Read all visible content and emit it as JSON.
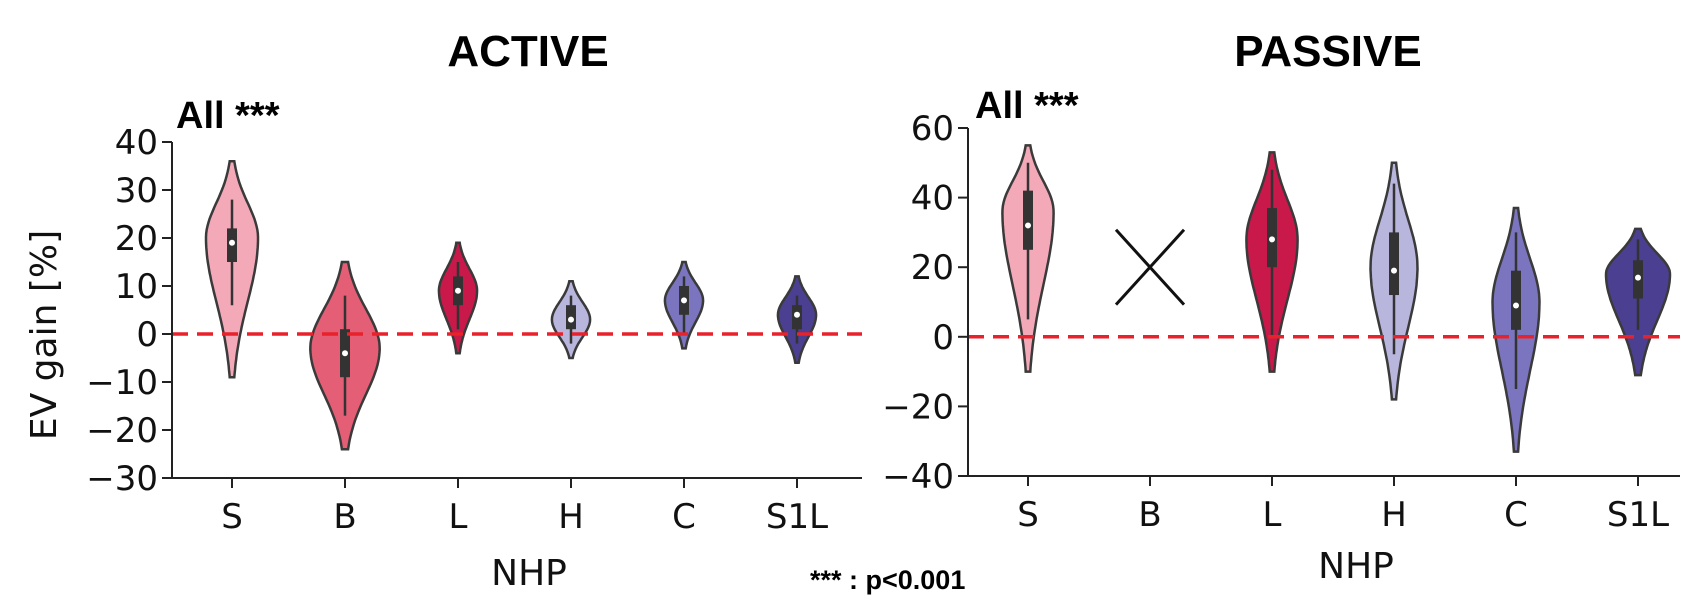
{
  "figure": {
    "footnote": "*** : p<0.001"
  },
  "chart_data": [
    {
      "type": "violin",
      "title": "ACTIVE",
      "annotation": "All ***",
      "xlabel": "NHP",
      "ylabel": "EV gain [%]",
      "ylim": [
        -30,
        40
      ],
      "yticks": [
        -30,
        -20,
        -10,
        0,
        10,
        20,
        30,
        40
      ],
      "ytick_labels": [
        "−30",
        "−20",
        "−10",
        "0",
        "10",
        "20",
        "30",
        "40"
      ],
      "reference_line": {
        "y": 0,
        "style": "dashed",
        "color": "#e8212b"
      },
      "categories": [
        "S",
        "B",
        "L",
        "H",
        "C",
        "S1L"
      ],
      "violins": [
        {
          "category": "S",
          "color": "#f4a9b8",
          "min": -9,
          "max": 36,
          "q1": 15,
          "median": 19,
          "q3": 22,
          "mode": 20,
          "whisker_low": 6,
          "whisker_high": 28,
          "spread": 0.75,
          "skew": 0.55
        },
        {
          "category": "B",
          "color": "#e45e76",
          "min": -24,
          "max": 15,
          "q1": -9,
          "median": -4,
          "q3": 1,
          "mode": -3,
          "whisker_low": -17,
          "whisker_high": 8,
          "spread": 1.0,
          "skew": 0.5
        },
        {
          "category": "L",
          "color": "#c8194a",
          "min": -4,
          "max": 19,
          "q1": 6,
          "median": 9,
          "q3": 12,
          "mode": 9,
          "whisker_low": 1,
          "whisker_high": 15,
          "spread": 0.55,
          "skew": 0.5
        },
        {
          "category": "H",
          "color": "#b9b6de",
          "min": -5,
          "max": 11,
          "q1": 1,
          "median": 3,
          "q3": 6,
          "mode": 3,
          "whisker_low": -2,
          "whisker_high": 8,
          "spread": 0.55,
          "skew": 0.5
        },
        {
          "category": "C",
          "color": "#7b75c0",
          "min": -3,
          "max": 15,
          "q1": 4,
          "median": 7,
          "q3": 10,
          "mode": 7,
          "whisker_low": 0,
          "whisker_high": 12,
          "spread": 0.55,
          "skew": 0.5
        },
        {
          "category": "S1L",
          "color": "#4b3f91",
          "min": -6,
          "max": 12,
          "q1": 1,
          "median": 4,
          "q3": 6,
          "mode": 4,
          "whisker_low": -2,
          "whisker_high": 8,
          "spread": 0.55,
          "skew": 0.5
        }
      ]
    },
    {
      "type": "violin",
      "title": "PASSIVE",
      "annotation": "All ***",
      "xlabel": "NHP",
      "ylabel": "",
      "ylim": [
        -40,
        60
      ],
      "yticks": [
        -40,
        -20,
        0,
        20,
        40,
        60
      ],
      "ytick_labels": [
        "−40",
        "−20",
        "0",
        "20",
        "40",
        "60"
      ],
      "reference_line": {
        "y": 0,
        "style": "dashed",
        "color": "#e8212b"
      },
      "categories": [
        "S",
        "B",
        "L",
        "H",
        "C",
        "S1L"
      ],
      "missing_categories": [
        "B"
      ],
      "violins": [
        {
          "category": "S",
          "color": "#f4a9b8",
          "min": -10,
          "max": 55,
          "q1": 25,
          "median": 32,
          "q3": 42,
          "mode": 36,
          "whisker_low": 5,
          "whisker_high": 50,
          "spread": 0.6,
          "skew": 0.55
        },
        {
          "category": "L",
          "color": "#c8194a",
          "min": -10,
          "max": 53,
          "q1": 20,
          "median": 28,
          "q3": 37,
          "mode": 28,
          "whisker_low": 0,
          "whisker_high": 48,
          "spread": 0.6,
          "skew": 0.5
        },
        {
          "category": "H",
          "color": "#b9b6de",
          "min": -18,
          "max": 50,
          "q1": 12,
          "median": 19,
          "q3": 30,
          "mode": 20,
          "whisker_low": -5,
          "whisker_high": 44,
          "spread": 0.55,
          "skew": 0.5
        },
        {
          "category": "C",
          "color": "#7b75c0",
          "min": -33,
          "max": 37,
          "q1": 2,
          "median": 9,
          "q3": 19,
          "mode": 10,
          "whisker_low": -15,
          "whisker_high": 30,
          "spread": 0.55,
          "skew": 0.5
        },
        {
          "category": "S1L",
          "color": "#4b3f91",
          "min": -11,
          "max": 31,
          "q1": 11,
          "median": 17,
          "q3": 22,
          "mode": 18,
          "whisker_low": 2,
          "whisker_high": 28,
          "spread": 0.75,
          "skew": 0.5
        }
      ]
    }
  ]
}
